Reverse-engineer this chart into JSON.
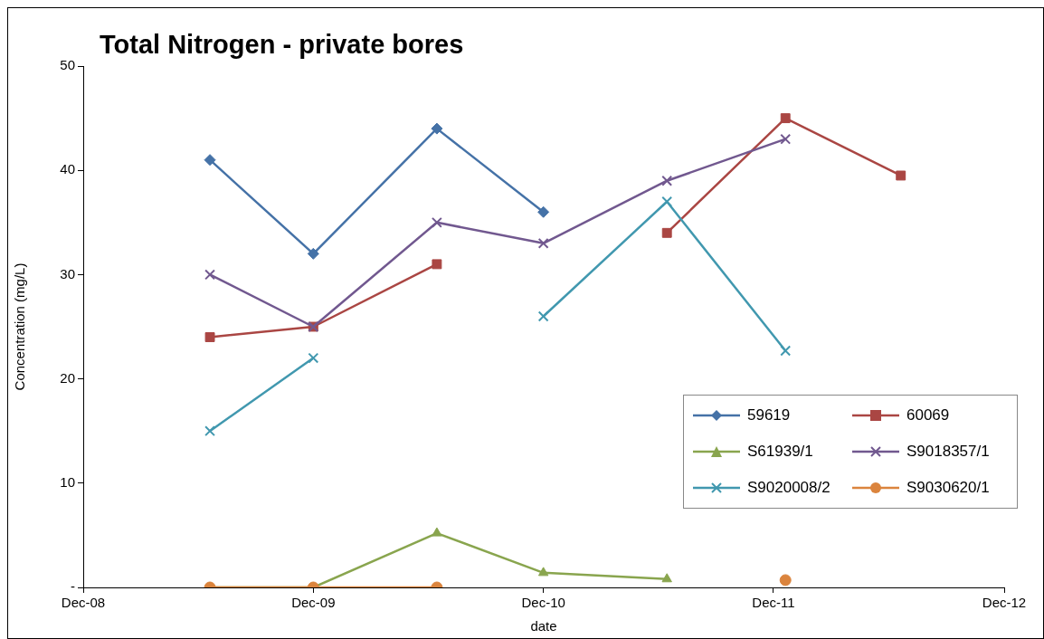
{
  "chart_data": {
    "type": "line",
    "title": "Total Nitrogen - private bores",
    "xlabel": "date",
    "ylabel": "Concentration (mg/L)",
    "x": [
      "2009-06-20",
      "2009-12-01",
      "2010-06-15",
      "2010-12-01",
      "2011-06-15",
      "2011-12-20",
      "2012-06-20"
    ],
    "xlim": [
      "2008-12-01",
      "2012-12-01"
    ],
    "xticks": [
      {
        "value": "2008-12-01",
        "label": "Dec-08"
      },
      {
        "value": "2009-12-01",
        "label": "Dec-09"
      },
      {
        "value": "2010-12-01",
        "label": "Dec-10"
      },
      {
        "value": "2011-12-01",
        "label": "Dec-11"
      },
      {
        "value": "2012-12-01",
        "label": "Dec-12"
      }
    ],
    "ylim": [
      0,
      50
    ],
    "yticks": [
      {
        "value": 0,
        "label": "-"
      },
      10,
      20,
      30,
      40,
      50
    ],
    "grid": false,
    "legend": "bottom right",
    "series": [
      {
        "name": "59619",
        "color": "#4572a7",
        "marker": "diamond",
        "values": [
          41,
          32,
          44,
          36,
          null,
          null,
          null
        ]
      },
      {
        "name": "60069",
        "color": "#aa4643",
        "marker": "square",
        "values": [
          24,
          25,
          31,
          null,
          34,
          45,
          39.5
        ]
      },
      {
        "name": "S61939/1",
        "color": "#89a54e",
        "marker": "triangle",
        "values": [
          0,
          0,
          5.2,
          1.4,
          0.8,
          null,
          null
        ]
      },
      {
        "name": "S9018357/1",
        "color": "#71588f",
        "marker": "cross",
        "values": [
          30,
          25,
          35,
          33,
          39,
          43,
          null
        ]
      },
      {
        "name": "S9020008/2",
        "color": "#4198af",
        "marker": "cross",
        "values": [
          15,
          22,
          null,
          26,
          37,
          22.7,
          null
        ]
      },
      {
        "name": "S9030620/1",
        "color": "#db843d",
        "marker": "circle",
        "values": [
          0,
          0,
          0,
          null,
          null,
          0.7,
          null
        ]
      }
    ]
  }
}
